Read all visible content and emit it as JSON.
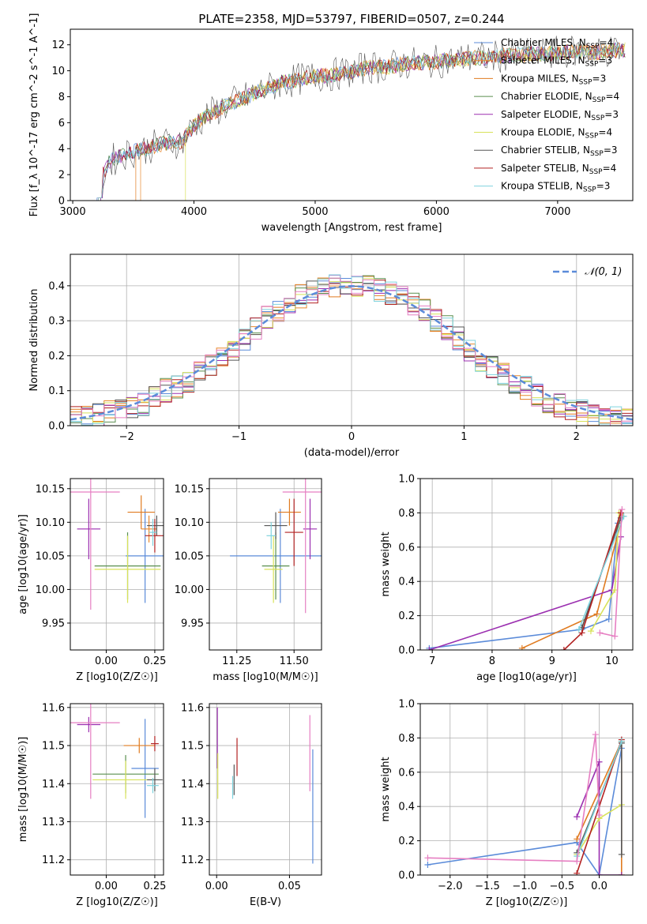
{
  "title": "PLATE=2358, MJD=53797, FIBERID=0507, z=0.244",
  "colors": {
    "ChabrierMILES": "#5b8bd9",
    "SalpeterMILES": "#e8892f",
    "KroupaMILES": "#e07b20",
    "ChabrierELODIE": "#5a8f4f",
    "SalpeterELODIE": "#9b2fb0",
    "KroupaELODIE": "#d8e25a",
    "ChabrierSTELIB": "#555555",
    "SalpeterSTELIB": "#b22222",
    "KroupaSTELIB": "#7fd3de",
    "pink": "#e67fc2",
    "normal": "#5b8bd9"
  },
  "chart_data": [
    {
      "id": "spectrum",
      "type": "line",
      "title": "PLATE=2358, MJD=53797, FIBERID=0507, z=0.244",
      "xlabel": "wavelength [Angstrom, rest frame]",
      "ylabel": "Flux [f_λ 10^-17 erg cm^-2 s^-1 A^-1]",
      "xlim": [
        2980,
        7620
      ],
      "ylim": [
        0,
        13.2
      ],
      "xticks": [
        "3000",
        "4000",
        "5000",
        "6000",
        "7000"
      ],
      "yticks": [
        "0",
        "2",
        "4",
        "6",
        "8",
        "10",
        "12"
      ],
      "data_x": [
        3200,
        3300,
        3400,
        3500,
        3600,
        3700,
        3800,
        3900,
        4000,
        4100,
        4200,
        4300,
        4400,
        4500,
        4600,
        4700,
        4800,
        4900,
        5000,
        5100,
        5200,
        5300,
        5400,
        5500,
        5600,
        5700,
        5800,
        5900,
        6000,
        6100,
        6200,
        6300,
        6400,
        6500,
        6600,
        6700,
        6800,
        6900,
        7000,
        7100,
        7200,
        7300,
        7400,
        7500
      ],
      "data_y": [
        1.0,
        3.0,
        3.5,
        3.8,
        4.0,
        4.3,
        4.5,
        4.5,
        5.8,
        6.5,
        7.0,
        7.5,
        7.8,
        8.3,
        8.6,
        9.0,
        9.2,
        9.4,
        9.6,
        9.6,
        9.8,
        9.9,
        10.2,
        10.3,
        10.3,
        10.5,
        10.6,
        10.6,
        10.7,
        10.8,
        10.9,
        11.0,
        11.0,
        11.1,
        11.2,
        11.2,
        11.3,
        11.3,
        11.4,
        11.5,
        11.5,
        11.4,
        11.5,
        11.6
      ],
      "series": [
        {
          "name": "Chabrier MILES, N_SSP=4"
        },
        {
          "name": "Salpeter MILES, N_SSP=3"
        },
        {
          "name": "Kroupa MILES, N_SSP=3"
        },
        {
          "name": "Chabrier ELODIE, N_SSP=4"
        },
        {
          "name": "Salpeter ELODIE, N_SSP=3"
        },
        {
          "name": "Kroupa ELODIE, N_SSP=4"
        },
        {
          "name": "Chabrier STELIB, N_SSP=3"
        },
        {
          "name": "Salpeter STELIB, N_SSP=4"
        },
        {
          "name": "Kroupa STELIB, N_SSP=3"
        }
      ],
      "legend_position": "right",
      "grid": false
    },
    {
      "id": "residuals",
      "type": "line",
      "xlabel": "(data-model)/error",
      "ylabel": "Normed distribution",
      "xlim": [
        -2.5,
        2.5
      ],
      "ylim": [
        0,
        0.49
      ],
      "xticks": [
        "−2",
        "−1",
        "0",
        "1",
        "2"
      ],
      "yticks": [
        "0.0",
        "0.1",
        "0.2",
        "0.3",
        "0.4"
      ],
      "bins_x": [
        -2.5,
        -2.4,
        -2.3,
        -2.2,
        -2.1,
        -2.0,
        -1.9,
        -1.8,
        -1.7,
        -1.6,
        -1.5,
        -1.4,
        -1.3,
        -1.2,
        -1.1,
        -1.0,
        -0.9,
        -0.8,
        -0.7,
        -0.6,
        -0.5,
        -0.4,
        -0.3,
        -0.2,
        -0.1,
        0.0,
        0.1,
        0.2,
        0.3,
        0.4,
        0.5,
        0.6,
        0.7,
        0.8,
        0.9,
        1.0,
        1.1,
        1.2,
        1.3,
        1.4,
        1.5,
        1.6,
        1.7,
        1.8,
        1.9,
        2.0,
        2.1,
        2.2,
        2.3,
        2.4
      ],
      "hist_values": [
        0.02,
        0.025,
        0.03,
        0.04,
        0.045,
        0.05,
        0.06,
        0.08,
        0.1,
        0.11,
        0.12,
        0.15,
        0.17,
        0.19,
        0.22,
        0.25,
        0.28,
        0.31,
        0.33,
        0.35,
        0.37,
        0.38,
        0.39,
        0.4,
        0.4,
        0.4,
        0.4,
        0.39,
        0.38,
        0.37,
        0.35,
        0.33,
        0.3,
        0.28,
        0.25,
        0.22,
        0.19,
        0.17,
        0.15,
        0.12,
        0.11,
        0.09,
        0.07,
        0.06,
        0.05,
        0.04,
        0.035,
        0.03,
        0.025,
        0.02
      ],
      "normal_label": "𝒩(0, 1)",
      "legend_position": "top-right",
      "grid": true
    },
    {
      "id": "age_vs_Z",
      "type": "scatter",
      "xlabel": "Z [log10(Z/Z☉)]",
      "ylabel": "age  [log10(age/yr)]",
      "xlim": [
        -0.185,
        0.295
      ],
      "ylim": [
        9.91,
        10.165
      ],
      "xticks": [
        "0.00",
        "0.25"
      ],
      "yticks": [
        "9.95",
        "10.00",
        "10.05",
        "10.10",
        "10.15"
      ],
      "points": [
        {
          "x": 0.2,
          "y": 10.05,
          "xerr": 0.1,
          "yerr": 0.07,
          "c": "ChabrierMILES"
        },
        {
          "x": 0.18,
          "y": 10.115,
          "xerr": 0.07,
          "yerr": 0.025,
          "c": "KroupaMILES"
        },
        {
          "x": 0.22,
          "y": 10.09,
          "xerr": 0.04,
          "yerr": 0.02,
          "c": "SalpeterMILES"
        },
        {
          "x": 0.11,
          "y": 10.035,
          "xerr": 0.17,
          "yerr": 0.05,
          "c": "ChabrierELODIE"
        },
        {
          "x": -0.09,
          "y": 10.09,
          "xerr": 0.06,
          "yerr": 0.045,
          "c": "SalpeterELODIE"
        },
        {
          "x": 0.11,
          "y": 10.03,
          "xerr": 0.17,
          "yerr": 0.05,
          "c": "KroupaELODIE"
        },
        {
          "x": 0.26,
          "y": 10.095,
          "xerr": 0.05,
          "yerr": 0.015,
          "c": "ChabrierSTELIB"
        },
        {
          "x": 0.25,
          "y": 10.08,
          "xerr": 0.05,
          "yerr": 0.025,
          "c": "SalpeterSTELIB"
        },
        {
          "x": 0.24,
          "y": 10.085,
          "xerr": 0.02,
          "yerr": 0.02,
          "c": "KroupaSTELIB"
        },
        {
          "x": -0.08,
          "y": 10.145,
          "xerr": 0.15,
          "yerr": 0.175,
          "c": "pink"
        }
      ],
      "grid": true
    },
    {
      "id": "age_vs_mass",
      "type": "scatter",
      "xlabel": "mass [log10(M/M☉)]",
      "ylabel": "",
      "xlim": [
        11.13,
        11.62
      ],
      "ylim": [
        9.91,
        10.165
      ],
      "xticks": [
        "11.25",
        "11.50"
      ],
      "yticks": [
        "9.95",
        "10.00",
        "10.05",
        "10.10",
        "10.15"
      ],
      "points": [
        {
          "x": 11.44,
          "y": 10.05,
          "xerr": 0.22,
          "yerr": 0.07,
          "c": "ChabrierMILES"
        },
        {
          "x": 11.48,
          "y": 10.115,
          "xerr": 0.05,
          "yerr": 0.02,
          "c": "KroupaMILES"
        },
        {
          "x": 11.5,
          "y": 10.085,
          "xerr": 0.04,
          "yerr": 0.05,
          "c": "SalpeterSTELIB"
        },
        {
          "x": 11.42,
          "y": 10.035,
          "xerr": 0.06,
          "yerr": 0.05,
          "c": "ChabrierELODIE"
        },
        {
          "x": 11.57,
          "y": 10.09,
          "xerr": 0.03,
          "yerr": 0.045,
          "c": "SalpeterELODIE"
        },
        {
          "x": 11.41,
          "y": 10.03,
          "xerr": 0.04,
          "yerr": 0.05,
          "c": "KroupaELODIE"
        },
        {
          "x": 11.42,
          "y": 10.095,
          "xerr": 0.05,
          "yerr": 0.02,
          "c": "ChabrierSTELIB"
        },
        {
          "x": 11.4,
          "y": 10.08,
          "xerr": 0.02,
          "yerr": 0.02,
          "c": "KroupaSTELIB"
        },
        {
          "x": 11.55,
          "y": 10.145,
          "xerr": 0.1,
          "yerr": 0.18,
          "c": "pink"
        }
      ],
      "grid": true
    },
    {
      "id": "weight_vs_age",
      "type": "line",
      "xlabel": "age  [log10(age/yr)]",
      "ylabel": "mass weight",
      "xlim": [
        6.8,
        10.35
      ],
      "ylim": [
        0,
        1.0
      ],
      "xticks": [
        "7",
        "8",
        "9",
        "10"
      ],
      "yticks": [
        "0.0",
        "0.2",
        "0.4",
        "0.6",
        "0.8",
        "1.0"
      ],
      "series": [
        {
          "c": "ChabrierMILES",
          "x": [
            6.95,
            9.5,
            9.95,
            10.1
          ],
          "y": [
            0.01,
            0.12,
            0.18,
            0.74
          ]
        },
        {
          "c": "KroupaMILES",
          "x": [
            8.5,
            9.75,
            10.18
          ],
          "y": [
            0.01,
            0.21,
            0.78
          ]
        },
        {
          "c": "SalpeterELODIE",
          "x": [
            6.95,
            10.0,
            10.15
          ],
          "y": [
            0.0,
            0.35,
            0.66
          ]
        },
        {
          "c": "KroupaELODIE",
          "x": [
            9.65,
            10.05,
            10.12
          ],
          "y": [
            0.11,
            0.35,
            0.8
          ]
        },
        {
          "c": "ChabrierSTELIB",
          "x": [
            9.5,
            10.15
          ],
          "y": [
            0.13,
            0.77
          ]
        },
        {
          "c": "SalpeterSTELIB",
          "x": [
            9.2,
            9.5,
            10.15
          ],
          "y": [
            0.0,
            0.1,
            0.8
          ]
        },
        {
          "c": "KroupaSTELIB",
          "x": [
            9.45,
            10.2
          ],
          "y": [
            0.12,
            0.78
          ]
        },
        {
          "c": "pink",
          "x": [
            9.8,
            10.05,
            10.17
          ],
          "y": [
            0.1,
            0.08,
            0.82
          ]
        }
      ],
      "grid": true
    },
    {
      "id": "mass_vs_Z",
      "type": "scatter",
      "xlabel": "Z [log10(Z/Z☉)]",
      "ylabel": "mass [log10(M/M☉)]",
      "xlim": [
        -0.185,
        0.295
      ],
      "ylim": [
        11.16,
        11.61
      ],
      "xticks": [
        "0.00",
        "0.25"
      ],
      "yticks": [
        "11.2",
        "11.3",
        "11.4",
        "11.5",
        "11.6"
      ],
      "points": [
        {
          "x": 0.2,
          "y": 11.44,
          "xerr": 0.07,
          "yerr": 0.13,
          "c": "ChabrierMILES"
        },
        {
          "x": 0.17,
          "y": 11.5,
          "xerr": 0.08,
          "yerr": 0.02,
          "c": "KroupaMILES"
        },
        {
          "x": 0.25,
          "y": 11.505,
          "xerr": 0.02,
          "yerr": 0.02,
          "c": "SalpeterSTELIB"
        },
        {
          "x": 0.1,
          "y": 11.425,
          "xerr": 0.17,
          "yerr": 0.05,
          "c": "ChabrierELODIE"
        },
        {
          "x": -0.09,
          "y": 11.555,
          "xerr": 0.06,
          "yerr": 0.02,
          "c": "SalpeterELODIE"
        },
        {
          "x": 0.1,
          "y": 11.41,
          "xerr": 0.17,
          "yerr": 0.05,
          "c": "KroupaELODIE"
        },
        {
          "x": 0.25,
          "y": 11.41,
          "xerr": 0.04,
          "yerr": 0.03,
          "c": "ChabrierSTELIB"
        },
        {
          "x": 0.24,
          "y": 11.395,
          "xerr": 0.03,
          "yerr": 0.02,
          "c": "KroupaSTELIB"
        },
        {
          "x": -0.08,
          "y": 11.56,
          "xerr": 0.15,
          "yerr": 0.2,
          "c": "pink"
        }
      ],
      "grid": true
    },
    {
      "id": "mass_vs_EBV",
      "type": "scatter",
      "xlabel": "E(B-V)",
      "ylabel": "",
      "xlim": [
        -0.005,
        0.072
      ],
      "ylim": [
        11.16,
        11.61
      ],
      "xticks": [
        "0.00",
        "0.05"
      ],
      "yticks": [
        "11.2",
        "11.3",
        "11.4",
        "11.5",
        "11.6"
      ],
      "points": [
        {
          "x": 0.066,
          "y": 11.34,
          "xerr": 0,
          "yerr": 0.15,
          "c": "ChabrierMILES"
        },
        {
          "x": 0.014,
          "y": 11.47,
          "xerr": 0,
          "yerr": 0.05,
          "c": "SalpeterSTELIB"
        },
        {
          "x": 0.0005,
          "y": 11.52,
          "xerr": 0,
          "yerr": 0.08,
          "c": "SalpeterELODIE"
        },
        {
          "x": 0.0008,
          "y": 11.42,
          "xerr": 0,
          "yerr": 0.06,
          "c": "KroupaELODIE"
        },
        {
          "x": 0.012,
          "y": 11.41,
          "xerr": 0,
          "yerr": 0.04,
          "c": "ChabrierSTELIB"
        },
        {
          "x": 0.011,
          "y": 11.39,
          "xerr": 0,
          "yerr": 0.03,
          "c": "KroupaSTELIB"
        },
        {
          "x": 0.064,
          "y": 11.48,
          "xerr": 0,
          "yerr": 0.1,
          "c": "pink"
        }
      ],
      "grid": true
    },
    {
      "id": "weight_vs_Z",
      "type": "line",
      "xlabel": "Z [log10(Z/Z☉)]",
      "ylabel": "mass weight",
      "xlim": [
        -2.4,
        0.45
      ],
      "ylim": [
        0,
        1.0
      ],
      "xticks": [
        "−2.0",
        "−1.5",
        "−1.0",
        "−0.5",
        "0.0"
      ],
      "yticks": [
        "0.0",
        "0.2",
        "0.4",
        "0.6",
        "0.8",
        "1.0"
      ],
      "series": [
        {
          "c": "ChabrierMILES",
          "x": [
            -2.3,
            -0.3,
            0.0,
            0.3
          ],
          "y": [
            0.06,
            0.19,
            0.0,
            0.74
          ]
        },
        {
          "c": "KroupaMILES",
          "x": [
            -0.3,
            0.3,
            0.3
          ],
          "y": [
            0.21,
            0.78,
            0.0
          ]
        },
        {
          "c": "SalpeterELODIE",
          "x": [
            -0.3,
            0.0,
            0.0,
            0.3
          ],
          "y": [
            0.34,
            0.66,
            0.0,
            0.0
          ]
        },
        {
          "c": "KroupaELODIE",
          "x": [
            -0.3,
            0.0,
            0.3
          ],
          "y": [
            0.12,
            0.33,
            0.41
          ]
        },
        {
          "c": "ChabrierSTELIB",
          "x": [
            -0.3,
            0.3,
            0.3
          ],
          "y": [
            0.13,
            0.77,
            0.12
          ]
        },
        {
          "c": "SalpeterSTELIB",
          "x": [
            -0.3,
            0.3
          ],
          "y": [
            0.01,
            0.79
          ]
        },
        {
          "c": "KroupaSTELIB",
          "x": [
            -0.3,
            0.3
          ],
          "y": [
            0.11,
            0.78
          ]
        },
        {
          "c": "pink",
          "x": [
            -2.3,
            -0.3,
            -0.05,
            0.0
          ],
          "y": [
            0.1,
            0.08,
            0.82,
            0.35
          ]
        }
      ],
      "grid": true
    }
  ]
}
